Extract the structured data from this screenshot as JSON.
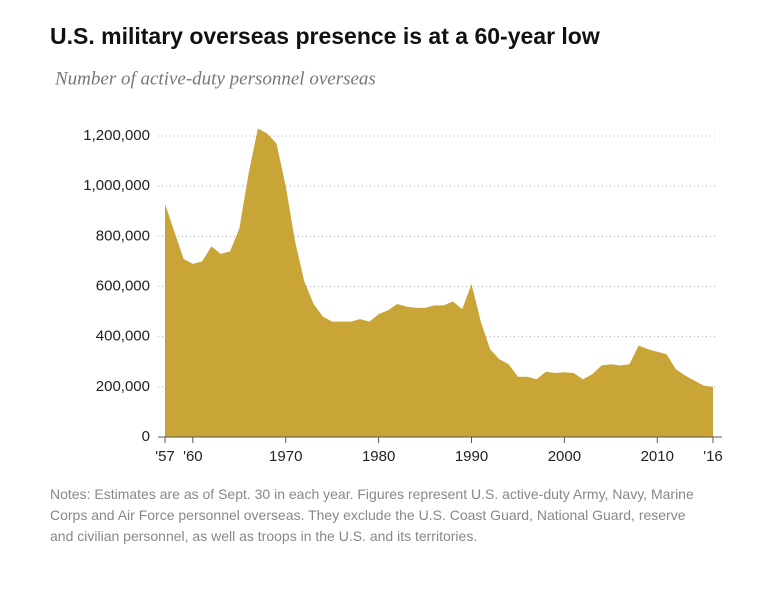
{
  "chart_data": {
    "type": "area",
    "title": "U.S. military overseas presence is at a 60-year low",
    "subtitle": "Number of active-duty personnel overseas",
    "notes": "Notes: Estimates are as of Sept. 30 in each year. Figures represent U.S. active-duty Army, Navy, Marine Corps and Air Force personnel overseas. They exclude the U.S. Coast Guard, National Guard, reserve and civilian personnel, as well as troops in the U.S. and its territories.",
    "color": "#c9a537",
    "grid": true,
    "x": [
      1957,
      1958,
      1959,
      1960,
      1961,
      1962,
      1963,
      1964,
      1965,
      1966,
      1967,
      1968,
      1969,
      1970,
      1971,
      1972,
      1973,
      1974,
      1975,
      1976,
      1977,
      1978,
      1979,
      1980,
      1981,
      1982,
      1983,
      1984,
      1985,
      1986,
      1987,
      1988,
      1989,
      1990,
      1991,
      1992,
      1993,
      1994,
      1995,
      1996,
      1997,
      1998,
      1999,
      2000,
      2001,
      2002,
      2003,
      2004,
      2005,
      2006,
      2007,
      2008,
      2009,
      2010,
      2011,
      2012,
      2013,
      2014,
      2015,
      2016
    ],
    "values": [
      930000,
      820000,
      710000,
      690000,
      700000,
      760000,
      730000,
      740000,
      830000,
      1050000,
      1230000,
      1210000,
      1170000,
      1000000,
      780000,
      620000,
      530000,
      480000,
      460000,
      460000,
      460000,
      470000,
      460000,
      490000,
      505000,
      530000,
      520000,
      515000,
      515000,
      525000,
      525000,
      540000,
      510000,
      610000,
      460000,
      350000,
      310000,
      290000,
      240000,
      240000,
      230000,
      260000,
      255000,
      258000,
      255000,
      230000,
      250000,
      285000,
      290000,
      285000,
      290000,
      365000,
      350000,
      340000,
      330000,
      270000,
      245000,
      225000,
      205000,
      200000
    ],
    "xlim": [
      1957,
      2016
    ],
    "xticks": [
      {
        "value": 1957,
        "label": "'57"
      },
      {
        "value": 1960,
        "label": "'60"
      },
      1970,
      1980,
      1990,
      2000,
      2010,
      {
        "value": 2016,
        "label": "'16"
      }
    ],
    "ylim": [
      0,
      1200000
    ],
    "yticks": [
      0,
      {
        "value": 200000,
        "label": "200,000"
      },
      {
        "value": 400000,
        "label": "400,000"
      },
      {
        "value": 600000,
        "label": "600,000"
      },
      {
        "value": 800000,
        "label": "800,000"
      },
      {
        "value": 1000000,
        "label": "1,000,000"
      },
      {
        "value": 1200000,
        "label": "1,200,000"
      }
    ]
  }
}
